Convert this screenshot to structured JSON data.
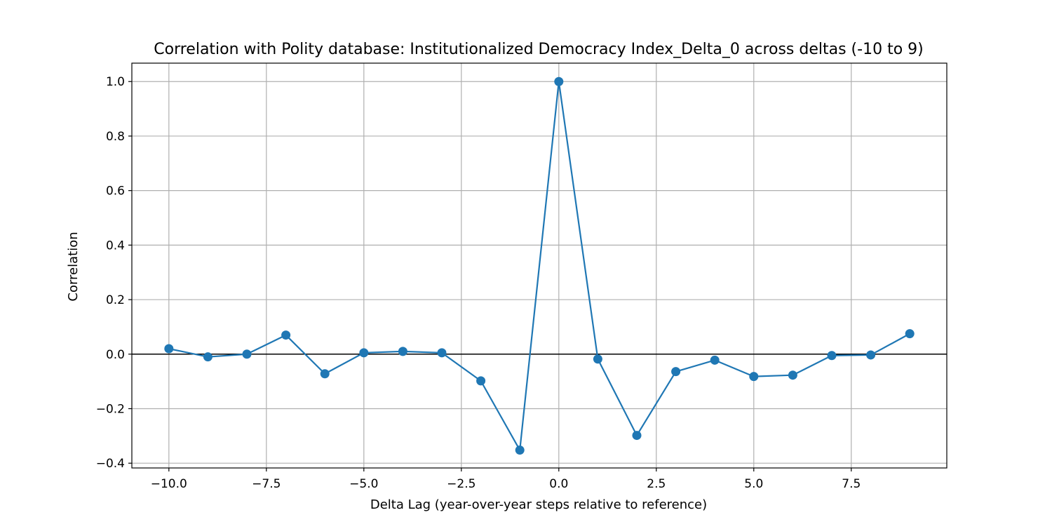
{
  "chart_data": {
    "type": "line",
    "title": "Correlation with Polity database: Institutionalized Democracy Index_Delta_0 across deltas (-10 to 9)",
    "xlabel": "Delta Lag (year-over-year steps relative to reference)",
    "ylabel": "Correlation",
    "xlim": [
      -10.95,
      9.95
    ],
    "ylim": [
      -0.4175,
      1.0675
    ],
    "xticks": [
      -10.0,
      -7.5,
      -5.0,
      -2.5,
      0.0,
      2.5,
      5.0,
      7.5
    ],
    "xtick_labels": [
      "−10.0",
      "−7.5",
      "−5.0",
      "−2.5",
      "0.0",
      "2.5",
      "5.0",
      "7.5"
    ],
    "yticks": [
      -0.4,
      -0.2,
      0.0,
      0.2,
      0.4,
      0.6,
      0.8,
      1.0
    ],
    "ytick_labels": [
      "−0.4",
      "−0.2",
      "0.0",
      "0.2",
      "0.4",
      "0.6",
      "0.8",
      "1.0"
    ],
    "grid": true,
    "reference_line_y": 0,
    "series": [
      {
        "color": "#1f77b4",
        "marker": "circle",
        "x": [
          -10,
          -9,
          -8,
          -7,
          -6,
          -5,
          -4,
          -3,
          -2,
          -1,
          0,
          1,
          2,
          3,
          4,
          5,
          6,
          7,
          8,
          9
        ],
        "y": [
          0.02,
          -0.01,
          0.0,
          0.07,
          -0.072,
          0.005,
          0.01,
          0.005,
          -0.098,
          -0.352,
          1.0,
          -0.018,
          -0.298,
          -0.064,
          -0.022,
          -0.082,
          -0.077,
          -0.005,
          -0.003,
          0.075
        ]
      }
    ]
  }
}
